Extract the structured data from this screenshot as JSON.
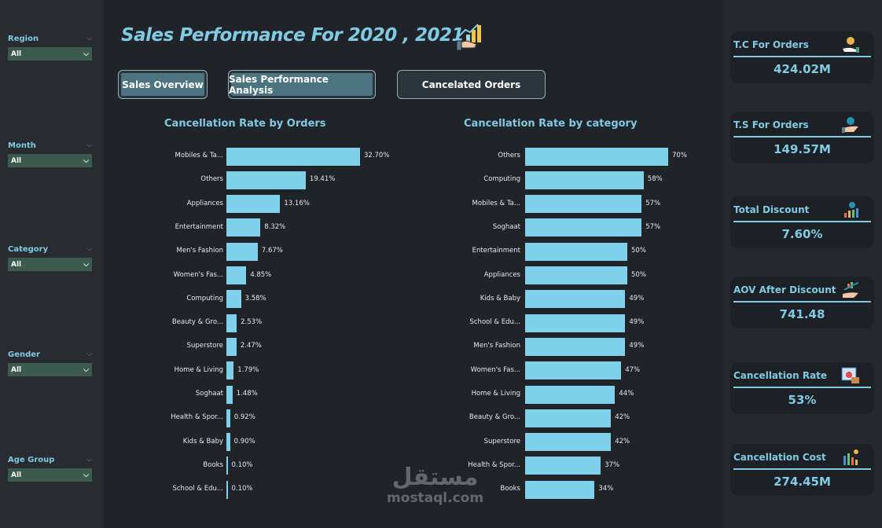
{
  "title": "Sales Performance For 2020 , 2021",
  "filters": [
    {
      "label": "Region",
      "value": "All"
    },
    {
      "label": "Month",
      "value": "All"
    },
    {
      "label": "Category",
      "value": "All"
    },
    {
      "label": "Gender",
      "value": "All"
    },
    {
      "label": "Age Group",
      "value": "All"
    }
  ],
  "nav": [
    {
      "label": "Sales Overview"
    },
    {
      "label": "Sales Performance Analysis"
    },
    {
      "label": "Cancelated Orders",
      "active": true
    }
  ],
  "kpis": [
    {
      "label": "T.C For Orders",
      "value": "424.02M",
      "icon": "money-hand-icon"
    },
    {
      "label": "T.S For Orders",
      "value": "149.57M",
      "icon": "discount-hand-icon"
    },
    {
      "label": "Total Discount",
      "value": "7.60%",
      "icon": "discount-chart-icon"
    },
    {
      "label": "AOV After Discount",
      "value": "741.48",
      "icon": "growth-hand-icon"
    },
    {
      "label": "Cancellation Rate",
      "value": "53%",
      "icon": "cancel-box-icon"
    },
    {
      "label": "Cancellation Cost",
      "value": "274.45M",
      "icon": "cost-chart-icon"
    }
  ],
  "watermark": {
    "arabic": "مستقل",
    "latin": "mostaql.com"
  },
  "colors": {
    "bar": "#7fd0ea",
    "accent": "#7fcbe3",
    "slicer": "#3c5a4d"
  },
  "chart_data": [
    {
      "type": "bar",
      "orientation": "horizontal",
      "title": "Cancellation Rate by Orders",
      "categories": [
        "Mobiles & Ta...",
        "Others",
        "Appliances",
        "Entertainment",
        "Men's Fashion",
        "Women's Fas...",
        "Computing",
        "Beauty & Gro...",
        "Superstore",
        "Home & Living",
        "Soghaat",
        "Health & Spor...",
        "Kids & Baby",
        "Books",
        "School & Edu..."
      ],
      "values": [
        32.7,
        19.41,
        13.16,
        8.32,
        7.67,
        4.85,
        3.58,
        2.53,
        2.47,
        1.79,
        1.48,
        0.92,
        0.9,
        0.1,
        0.1
      ],
      "labels": [
        "32.70%",
        "19.41%",
        "13.16%",
        "8.32%",
        "7.67%",
        "4.85%",
        "3.58%",
        "2.53%",
        "2.47%",
        "1.79%",
        "1.48%",
        "0.92%",
        "0.90%",
        "0.10%",
        "0.10%"
      ]
    },
    {
      "type": "bar",
      "orientation": "horizontal",
      "title": "Cancellation Rate by category",
      "categories": [
        "Others",
        "Computing",
        "Mobiles & Ta...",
        "Soghaat",
        "Entertainment",
        "Appliances",
        "Kids & Baby",
        "School & Edu...",
        "Men's Fashion",
        "Women's Fas...",
        "Home & Living",
        "Beauty & Gro...",
        "Superstore",
        "Health & Spor...",
        "Books"
      ],
      "values": [
        70,
        58,
        57,
        57,
        50,
        50,
        49,
        49,
        49,
        47,
        44,
        42,
        42,
        37,
        34
      ],
      "labels": [
        "70%",
        "58%",
        "57%",
        "57%",
        "50%",
        "50%",
        "49%",
        "49%",
        "49%",
        "47%",
        "44%",
        "42%",
        "42%",
        "37%",
        "34%"
      ]
    }
  ]
}
